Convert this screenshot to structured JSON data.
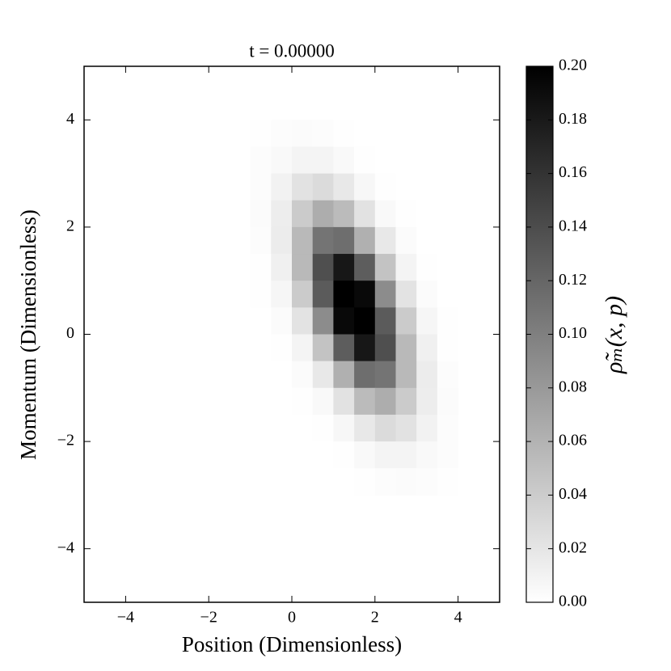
{
  "chart_data": {
    "type": "heatmap",
    "title": "t = 0.00000",
    "xlabel": "Position (Dimensionless)",
    "ylabel": "Momentum (Dimensionless)",
    "colorbar_label": "ρ̃ₘ(x, p)",
    "xlim": [
      -5,
      5
    ],
    "ylim": [
      -5,
      5
    ],
    "xticks": [
      {
        "value": -4,
        "label": "−4"
      },
      {
        "value": -2,
        "label": "−2"
      },
      0,
      2,
      4
    ],
    "yticks": [
      {
        "value": -4,
        "label": "−4"
      },
      {
        "value": -2,
        "label": "−2"
      },
      0,
      2,
      4
    ],
    "clim": [
      0,
      0.2
    ],
    "cticks": [
      {
        "value": 0,
        "label": "0.00"
      },
      {
        "value": 0.02,
        "label": "0.02"
      },
      {
        "value": 0.04,
        "label": "0.04"
      },
      {
        "value": 0.06,
        "label": "0.06"
      },
      {
        "value": 0.08,
        "label": "0.08"
      },
      {
        "value": 0.1,
        "label": "0.10"
      },
      {
        "value": 0.12,
        "label": "0.12"
      },
      {
        "value": 0.14,
        "label": "0.14"
      },
      {
        "value": 0.16,
        "label": "0.16"
      },
      {
        "value": 0.18,
        "label": "0.18"
      },
      {
        "value": 0.2,
        "label": "0.20"
      }
    ],
    "colormap": [
      "#ffffff",
      "#000000"
    ],
    "x": [
      -0.75,
      -0.25,
      0.25,
      0.75,
      1.25,
      1.75,
      2.25,
      2.75,
      3.25,
      3.75
    ],
    "y": [
      3.75,
      3.25,
      2.75,
      2.25,
      1.75,
      1.25,
      0.75,
      0.25,
      -0.25,
      -0.75,
      -1.25,
      -1.75,
      -2.25,
      -2.75
    ],
    "values": [
      [
        0.001,
        0.002,
        0.003,
        0.002,
        0.001,
        0,
        0,
        0,
        0,
        0
      ],
      [
        0.002,
        0.005,
        0.009,
        0.009,
        0.005,
        0.001,
        0,
        0,
        0,
        0
      ],
      [
        0.002,
        0.01,
        0.023,
        0.028,
        0.018,
        0.006,
        0.001,
        0,
        0,
        0
      ],
      [
        0.003,
        0.014,
        0.041,
        0.064,
        0.053,
        0.023,
        0.005,
        0.001,
        0,
        0
      ],
      [
        0.002,
        0.015,
        0.055,
        0.109,
        0.114,
        0.062,
        0.018,
        0.003,
        0,
        0
      ],
      [
        0.001,
        0.012,
        0.055,
        0.138,
        0.182,
        0.127,
        0.047,
        0.009,
        0.001,
        0
      ],
      [
        0.001,
        0.007,
        0.041,
        0.129,
        0.217,
        0.193,
        0.09,
        0.022,
        0.003,
        0
      ],
      [
        0,
        0.003,
        0.022,
        0.09,
        0.193,
        0.217,
        0.129,
        0.041,
        0.007,
        0.001
      ],
      [
        0,
        0.001,
        0.009,
        0.047,
        0.127,
        0.182,
        0.138,
        0.055,
        0.012,
        0.001
      ],
      [
        0,
        0,
        0.003,
        0.018,
        0.062,
        0.114,
        0.109,
        0.055,
        0.015,
        0.002
      ],
      [
        0,
        0,
        0.001,
        0.005,
        0.023,
        0.053,
        0.064,
        0.041,
        0.014,
        0.003
      ],
      [
        0,
        0,
        0,
        0.001,
        0.006,
        0.018,
        0.028,
        0.023,
        0.01,
        0.002
      ],
      [
        0,
        0,
        0,
        0,
        0.001,
        0.005,
        0.009,
        0.009,
        0.005,
        0.002
      ],
      [
        0,
        0,
        0,
        0,
        0,
        0.001,
        0.002,
        0.003,
        0.002,
        0.001
      ]
    ]
  }
}
